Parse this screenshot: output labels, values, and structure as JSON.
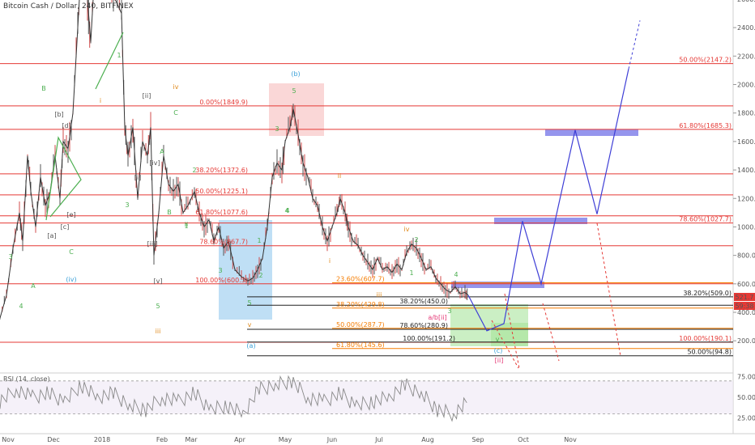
{
  "header": {
    "title": "Bitcoin Cash / Dollar, 240, BITFINEX"
  },
  "price_axis": {
    "ticks": [
      "2600.0",
      "2400.0",
      "2200.0",
      "2000.0",
      "1800.0",
      "1600.0",
      "1400.0",
      "1200.0",
      "1000.0",
      "800.0",
      "600.0",
      "400.0",
      "200.0"
    ],
    "last_price": "521.7",
    "countdown": "59:38"
  },
  "rsi": {
    "label": "RSI (14, close)",
    "ticks": [
      "75.0000",
      "50.0000",
      "25.0000"
    ]
  },
  "time_axis": {
    "labels": [
      "Nov",
      "Dec",
      "2018",
      "Feb",
      "Mar",
      "Apr",
      "May",
      "Jun",
      "Jul",
      "Aug",
      "Sep",
      "Oct",
      "Nov"
    ]
  },
  "colors": {
    "red_line": "#e53935",
    "orange_line": "#f57c00",
    "black_line": "#222222",
    "projection": "#3f3fd6",
    "target_box": "#7b7be8",
    "wave_green": "#4caf50",
    "wave_orange": "#e08a1c",
    "wave_blue": "#3aa0d8",
    "wave_dark": "#555555",
    "rsi_line": "#888888"
  },
  "chart_data": {
    "type": "line",
    "price_unit": "USD",
    "ylim": [
      0,
      2700
    ],
    "grid": false,
    "price_sample": [
      [
        0,
        360
      ],
      [
        8,
        520
      ],
      [
        16,
        850
      ],
      [
        24,
        1100
      ],
      [
        28,
        900
      ],
      [
        34,
        1500
      ],
      [
        38,
        1250
      ],
      [
        44,
        1000
      ],
      [
        50,
        1350
      ],
      [
        56,
        1150
      ],
      [
        62,
        1250
      ],
      [
        68,
        1500
      ],
      [
        74,
        1200
      ],
      [
        78,
        1600
      ],
      [
        84,
        1550
      ],
      [
        90,
        1800
      ],
      [
        96,
        2400
      ],
      [
        100,
        2800
      ],
      [
        104,
        3200
      ],
      [
        108,
        2600
      ],
      [
        112,
        2300
      ],
      [
        118,
        2900
      ],
      [
        124,
        2700
      ],
      [
        130,
        2950
      ],
      [
        136,
        2800
      ],
      [
        142,
        2600
      ],
      [
        150,
        2500
      ],
      [
        154,
        1700
      ],
      [
        158,
        1500
      ],
      [
        164,
        1700
      ],
      [
        170,
        1200
      ],
      [
        176,
        1600
      ],
      [
        182,
        1500
      ],
      [
        186,
        1700
      ],
      [
        190,
        800
      ],
      [
        196,
        1100
      ],
      [
        202,
        1500
      ],
      [
        208,
        1300
      ],
      [
        214,
        1250
      ],
      [
        220,
        1300
      ],
      [
        226,
        1100
      ],
      [
        232,
        1150
      ],
      [
        240,
        1250
      ],
      [
        246,
        1100
      ],
      [
        252,
        1000
      ],
      [
        258,
        1050
      ],
      [
        264,
        900
      ],
      [
        270,
        1000
      ],
      [
        276,
        850
      ],
      [
        282,
        900
      ],
      [
        290,
        700
      ],
      [
        298,
        650
      ],
      [
        306,
        620
      ],
      [
        312,
        640
      ],
      [
        318,
        700
      ],
      [
        324,
        780
      ],
      [
        330,
        1000
      ],
      [
        336,
        1350
      ],
      [
        342,
        1450
      ],
      [
        348,
        1400
      ],
      [
        352,
        1600
      ],
      [
        358,
        1700
      ],
      [
        362,
        1830
      ],
      [
        368,
        1650
      ],
      [
        374,
        1450
      ],
      [
        380,
        1350
      ],
      [
        386,
        1200
      ],
      [
        392,
        1150
      ],
      [
        398,
        1000
      ],
      [
        404,
        900
      ],
      [
        410,
        1000
      ],
      [
        416,
        1100
      ],
      [
        420,
        1200
      ],
      [
        426,
        1100
      ],
      [
        430,
        1000
      ],
      [
        436,
        900
      ],
      [
        442,
        870
      ],
      [
        448,
        800
      ],
      [
        454,
        750
      ],
      [
        460,
        700
      ],
      [
        466,
        780
      ],
      [
        472,
        700
      ],
      [
        478,
        720
      ],
      [
        484,
        680
      ],
      [
        490,
        740
      ],
      [
        496,
        700
      ],
      [
        502,
        820
      ],
      [
        508,
        880
      ],
      [
        514,
        850
      ],
      [
        520,
        780
      ],
      [
        526,
        700
      ],
      [
        532,
        720
      ],
      [
        538,
        640
      ],
      [
        544,
        600
      ],
      [
        550,
        560
      ],
      [
        556,
        540
      ],
      [
        562,
        580
      ],
      [
        568,
        530
      ],
      [
        574,
        540
      ],
      [
        578,
        520
      ]
    ],
    "rsi_sample": [
      [
        0,
        45
      ],
      [
        20,
        60
      ],
      [
        40,
        50
      ],
      [
        60,
        55
      ],
      [
        80,
        45
      ],
      [
        100,
        65
      ],
      [
        120,
        50
      ],
      [
        140,
        55
      ],
      [
        160,
        40
      ],
      [
        180,
        35
      ],
      [
        200,
        50
      ],
      [
        220,
        45
      ],
      [
        240,
        55
      ],
      [
        260,
        35
      ],
      [
        280,
        40
      ],
      [
        300,
        30
      ],
      [
        320,
        60
      ],
      [
        340,
        65
      ],
      [
        360,
        70
      ],
      [
        380,
        50
      ],
      [
        400,
        45
      ],
      [
        420,
        55
      ],
      [
        440,
        40
      ],
      [
        460,
        45
      ],
      [
        480,
        50
      ],
      [
        500,
        65
      ],
      [
        520,
        55
      ],
      [
        540,
        35
      ],
      [
        560,
        30
      ],
      [
        578,
        45
      ]
    ],
    "projection": [
      [
        578,
        520
      ],
      [
        601,
        270
      ],
      [
        622,
        320
      ],
      [
        645,
        1040
      ],
      [
        668,
        600
      ],
      [
        710,
        1680
      ],
      [
        737,
        1090
      ],
      [
        776,
        2110
      ],
      [
        790,
        2450
      ]
    ],
    "fib_levels": [
      {
        "label": "0.00%(1849.9)",
        "price": 1849.9,
        "color": "red"
      },
      {
        "label": "38.20%(1372.6)",
        "price": 1372.6,
        "color": "red"
      },
      {
        "label": "50.00%(1225.1)",
        "price": 1225.1,
        "color": "red"
      },
      {
        "label": "61.80%(1077.6)",
        "price": 1077.6,
        "color": "red"
      },
      {
        "label": "78.60%(867.7)",
        "price": 867.7,
        "color": "red"
      },
      {
        "label": "100.00%(600.3)",
        "price": 600.3,
        "color": "red"
      },
      {
        "label": "50.00%(2147.2)",
        "price": 2147.2,
        "color": "red"
      },
      {
        "label": "61.80%(1685.3)",
        "price": 1685.3,
        "color": "red"
      },
      {
        "label": "78.60%(1027.7)",
        "price": 1027.7,
        "color": "red"
      },
      {
        "label": "100.00%(190.1)",
        "price": 190.1,
        "color": "red"
      },
      {
        "label": "23.60%(607.7)",
        "price": 607.7,
        "color": "orange"
      },
      {
        "label": "38.20%(429.8)",
        "price": 429.8,
        "color": "orange"
      },
      {
        "label": "50.00%(287.7)",
        "price": 287.7,
        "color": "orange"
      },
      {
        "label": "61.80%(145.6)",
        "price": 145.6,
        "color": "orange"
      },
      {
        "label": "38.20%(450.0)",
        "price": 450.0,
        "color": "black"
      },
      {
        "label": "78.60%(280.9)",
        "price": 280.9,
        "color": "black"
      },
      {
        "label": "100.00%(191.2)",
        "price": 191.2,
        "color": "black"
      },
      {
        "label": "38.20%(509.0)",
        "price": 509.0,
        "color": "black"
      },
      {
        "label": "50.00%(94.8)",
        "price": 94.8,
        "color": "black"
      }
    ],
    "wave_labels": [
      "B",
      "[b]",
      "[d]",
      "[e]",
      "[c]",
      "[a]",
      "C",
      "3",
      "4",
      "A",
      "(iv)",
      "1",
      "iv",
      "[ii]",
      "i",
      "C",
      "A",
      "[iv]",
      "2",
      "[i]",
      "3",
      "B",
      "ii",
      "1",
      "[iii]",
      "[v]",
      "5",
      "iii",
      "3",
      "2",
      "4",
      "1",
      "5",
      "v",
      "(a)",
      "(b)",
      "5",
      "3",
      "4",
      "ii",
      "iv",
      "2",
      "i",
      "1",
      "iii",
      "4",
      "3",
      "a/b[ii]",
      "v",
      "(c)",
      "[ii]"
    ]
  }
}
